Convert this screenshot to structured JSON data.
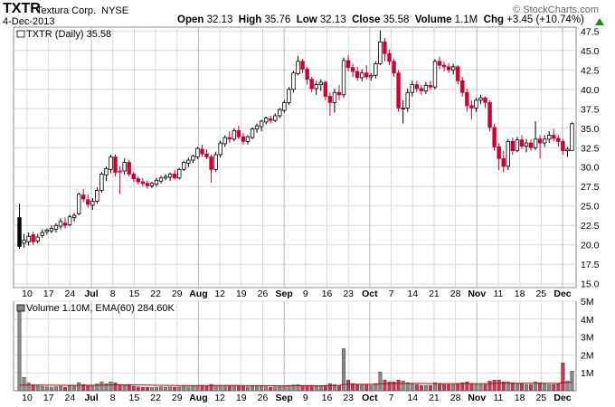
{
  "header": {
    "symbol": "TXTR",
    "company": "Textura Corp.",
    "exchange": "NYSE",
    "date": "4-Dec-2013",
    "open_label": "Open",
    "open": "32.13",
    "high_label": "High",
    "high": "35.76",
    "low_label": "Low",
    "low": "32.13",
    "close_label": "Close",
    "close": "35.58",
    "volume_label": "Volume",
    "volume": "1.1M",
    "chg_label": "Chg",
    "chg": "+3.45 (+10.74%)",
    "brand": "© StockCharts.com"
  },
  "chart_data": {
    "type": "candlestick",
    "title": "TXTR (Daily) 35.58",
    "volume_title": "Volume 1.10M, EMA(60) 284.60K",
    "x_labels": [
      "10",
      "17",
      "24",
      "Jul",
      "8",
      "15",
      "22",
      "29",
      "Aug",
      "12",
      "19",
      "26",
      "Sep",
      "9",
      "16",
      "23",
      "Oct",
      "7",
      "14",
      "21",
      "28",
      "Nov",
      "11",
      "18",
      "25",
      "Dec"
    ],
    "x_bold": [
      "Jul",
      "Aug",
      "Sep",
      "Oct",
      "Nov",
      "Dec"
    ],
    "price_ylim": [
      14.5,
      48
    ],
    "price_ticks": [
      15.0,
      17.5,
      20.0,
      22.5,
      25.0,
      27.5,
      30.0,
      32.5,
      35.0,
      37.5,
      40.0,
      42.5,
      45.0,
      47.5
    ],
    "volume_ylim": [
      0,
      5
    ],
    "volume_ticks": [
      {
        "v": 1,
        "label": "1M"
      },
      {
        "v": 2,
        "label": "2M"
      },
      {
        "v": 3,
        "label": "3M"
      },
      {
        "v": 4,
        "label": "4M"
      },
      {
        "v": 5,
        "label": "5M"
      }
    ],
    "colors": {
      "up": "#ffffff",
      "down": "#cc0033",
      "first": "#000000",
      "wick": "#000000",
      "grid": "#d8d8d8",
      "vol_up": "#888888",
      "vol_down": "#cc3355",
      "ema": "#cc0000"
    },
    "candles": [
      {
        "o": 19.8,
        "h": 25.3,
        "l": 19.5,
        "c": 23.5,
        "v": 4.8
      },
      {
        "o": 20.2,
        "h": 21.4,
        "l": 19.6,
        "c": 20.6,
        "v": 0.75
      },
      {
        "o": 20.4,
        "h": 21.6,
        "l": 19.9,
        "c": 21.1,
        "v": 0.45
      },
      {
        "o": 21.3,
        "h": 21.7,
        "l": 20.0,
        "c": 20.4,
        "v": 0.3
      },
      {
        "o": 20.5,
        "h": 21.4,
        "l": 20.2,
        "c": 21.0,
        "v": 0.28
      },
      {
        "o": 21.2,
        "h": 22.0,
        "l": 20.9,
        "c": 21.6,
        "v": 0.25
      },
      {
        "o": 21.7,
        "h": 22.1,
        "l": 21.3,
        "c": 21.9,
        "v": 0.22
      },
      {
        "o": 21.8,
        "h": 22.5,
        "l": 21.5,
        "c": 22.1,
        "v": 0.2
      },
      {
        "o": 22.0,
        "h": 22.8,
        "l": 21.6,
        "c": 22.5,
        "v": 0.22
      },
      {
        "o": 22.4,
        "h": 23.4,
        "l": 22.0,
        "c": 23.0,
        "v": 0.25
      },
      {
        "o": 22.8,
        "h": 23.5,
        "l": 22.1,
        "c": 22.5,
        "v": 0.2
      },
      {
        "o": 22.6,
        "h": 23.9,
        "l": 22.4,
        "c": 23.6,
        "v": 0.28
      },
      {
        "o": 23.5,
        "h": 24.1,
        "l": 23.0,
        "c": 23.8,
        "v": 0.3
      },
      {
        "o": 24.0,
        "h": 26.7,
        "l": 23.8,
        "c": 26.5,
        "v": 0.45
      },
      {
        "o": 26.4,
        "h": 27.2,
        "l": 25.5,
        "c": 25.9,
        "v": 0.35
      },
      {
        "o": 25.8,
        "h": 26.5,
        "l": 24.8,
        "c": 25.2,
        "v": 0.3
      },
      {
        "o": 25.1,
        "h": 26.0,
        "l": 24.5,
        "c": 25.6,
        "v": 0.3
      },
      {
        "o": 25.6,
        "h": 27.4,
        "l": 25.3,
        "c": 27.0,
        "v": 0.38
      },
      {
        "o": 27.0,
        "h": 29.4,
        "l": 26.7,
        "c": 29.1,
        "v": 0.5
      },
      {
        "o": 29.0,
        "h": 30.1,
        "l": 28.2,
        "c": 29.8,
        "v": 0.4
      },
      {
        "o": 29.7,
        "h": 31.6,
        "l": 29.2,
        "c": 31.3,
        "v": 0.5
      },
      {
        "o": 31.3,
        "h": 31.6,
        "l": 28.8,
        "c": 29.3,
        "v": 0.45
      },
      {
        "o": 29.5,
        "h": 30.1,
        "l": 26.5,
        "c": 29.4,
        "v": 0.35
      },
      {
        "o": 29.5,
        "h": 31.1,
        "l": 29.0,
        "c": 30.6,
        "v": 0.3
      },
      {
        "o": 30.6,
        "h": 30.9,
        "l": 28.8,
        "c": 29.1,
        "v": 0.3
      },
      {
        "o": 29.1,
        "h": 29.4,
        "l": 28.1,
        "c": 28.5,
        "v": 0.25
      },
      {
        "o": 28.5,
        "h": 28.8,
        "l": 27.8,
        "c": 28.1,
        "v": 0.22
      },
      {
        "o": 28.1,
        "h": 28.6,
        "l": 27.5,
        "c": 27.9,
        "v": 0.2
      },
      {
        "o": 27.9,
        "h": 28.3,
        "l": 27.2,
        "c": 27.6,
        "v": 0.2
      },
      {
        "o": 27.6,
        "h": 28.1,
        "l": 27.3,
        "c": 27.9,
        "v": 0.18
      },
      {
        "o": 27.8,
        "h": 28.6,
        "l": 27.5,
        "c": 28.3,
        "v": 0.2
      },
      {
        "o": 28.2,
        "h": 28.9,
        "l": 27.9,
        "c": 28.6,
        "v": 0.22
      },
      {
        "o": 28.6,
        "h": 29.1,
        "l": 28.3,
        "c": 28.8,
        "v": 0.2
      },
      {
        "o": 28.7,
        "h": 29.3,
        "l": 28.2,
        "c": 29.1,
        "v": 0.22
      },
      {
        "o": 29.1,
        "h": 29.6,
        "l": 28.4,
        "c": 28.6,
        "v": 0.2
      },
      {
        "o": 28.6,
        "h": 29.9,
        "l": 28.4,
        "c": 29.7,
        "v": 0.22
      },
      {
        "o": 29.7,
        "h": 30.8,
        "l": 29.5,
        "c": 30.6,
        "v": 0.25
      },
      {
        "o": 30.5,
        "h": 31.2,
        "l": 30.0,
        "c": 30.9,
        "v": 0.22
      },
      {
        "o": 30.9,
        "h": 31.6,
        "l": 30.5,
        "c": 31.4,
        "v": 0.25
      },
      {
        "o": 31.3,
        "h": 32.6,
        "l": 31.0,
        "c": 32.4,
        "v": 0.3
      },
      {
        "o": 32.3,
        "h": 32.9,
        "l": 31.3,
        "c": 31.7,
        "v": 0.3
      },
      {
        "o": 31.7,
        "h": 32.3,
        "l": 31.0,
        "c": 31.3,
        "v": 0.25
      },
      {
        "o": 31.3,
        "h": 31.6,
        "l": 28.0,
        "c": 29.7,
        "v": 0.35
      },
      {
        "o": 29.7,
        "h": 32.0,
        "l": 29.4,
        "c": 31.6,
        "v": 0.3
      },
      {
        "o": 31.6,
        "h": 33.4,
        "l": 31.2,
        "c": 33.1,
        "v": 0.3
      },
      {
        "o": 33.0,
        "h": 34.1,
        "l": 32.6,
        "c": 33.8,
        "v": 0.3
      },
      {
        "o": 33.8,
        "h": 34.6,
        "l": 33.1,
        "c": 33.6,
        "v": 0.28
      },
      {
        "o": 33.6,
        "h": 35.0,
        "l": 33.3,
        "c": 34.7,
        "v": 0.3
      },
      {
        "o": 34.7,
        "h": 35.3,
        "l": 33.6,
        "c": 33.9,
        "v": 0.28
      },
      {
        "o": 33.9,
        "h": 34.4,
        "l": 32.9,
        "c": 33.3,
        "v": 0.25
      },
      {
        "o": 33.3,
        "h": 34.1,
        "l": 32.9,
        "c": 33.9,
        "v": 0.22
      },
      {
        "o": 33.8,
        "h": 35.1,
        "l": 33.6,
        "c": 34.9,
        "v": 0.25
      },
      {
        "o": 34.9,
        "h": 35.6,
        "l": 34.4,
        "c": 35.3,
        "v": 0.25
      },
      {
        "o": 35.2,
        "h": 36.1,
        "l": 34.6,
        "c": 35.9,
        "v": 0.25
      },
      {
        "o": 35.8,
        "h": 36.5,
        "l": 35.5,
        "c": 36.3,
        "v": 0.22
      },
      {
        "o": 36.2,
        "h": 36.6,
        "l": 35.6,
        "c": 36.0,
        "v": 0.2
      },
      {
        "o": 36.0,
        "h": 36.9,
        "l": 35.8,
        "c": 36.6,
        "v": 0.22
      },
      {
        "o": 36.6,
        "h": 37.6,
        "l": 36.3,
        "c": 37.4,
        "v": 0.25
      },
      {
        "o": 37.3,
        "h": 38.6,
        "l": 37.0,
        "c": 38.3,
        "v": 0.28
      },
      {
        "o": 38.3,
        "h": 40.3,
        "l": 38.0,
        "c": 40.0,
        "v": 0.3
      },
      {
        "o": 40.0,
        "h": 42.4,
        "l": 39.6,
        "c": 42.1,
        "v": 0.32
      },
      {
        "o": 42.0,
        "h": 44.3,
        "l": 41.8,
        "c": 43.6,
        "v": 0.35
      },
      {
        "o": 43.6,
        "h": 43.9,
        "l": 42.1,
        "c": 42.6,
        "v": 0.3
      },
      {
        "o": 42.6,
        "h": 42.9,
        "l": 40.6,
        "c": 41.3,
        "v": 0.3
      },
      {
        "o": 41.3,
        "h": 41.6,
        "l": 39.6,
        "c": 40.1,
        "v": 0.3
      },
      {
        "o": 40.1,
        "h": 41.1,
        "l": 39.3,
        "c": 40.6,
        "v": 0.25
      },
      {
        "o": 40.6,
        "h": 41.3,
        "l": 39.8,
        "c": 40.9,
        "v": 0.25
      },
      {
        "o": 40.9,
        "h": 41.1,
        "l": 38.6,
        "c": 39.1,
        "v": 0.3
      },
      {
        "o": 39.1,
        "h": 39.6,
        "l": 36.6,
        "c": 38.3,
        "v": 0.4
      },
      {
        "o": 38.3,
        "h": 40.1,
        "l": 37.0,
        "c": 39.6,
        "v": 0.35
      },
      {
        "o": 39.6,
        "h": 40.6,
        "l": 38.6,
        "c": 39.3,
        "v": 0.3
      },
      {
        "o": 39.3,
        "h": 44.1,
        "l": 38.9,
        "c": 43.7,
        "v": 2.35
      },
      {
        "o": 43.7,
        "h": 44.4,
        "l": 42.3,
        "c": 42.8,
        "v": 0.6
      },
      {
        "o": 42.8,
        "h": 43.3,
        "l": 41.6,
        "c": 42.3,
        "v": 0.4
      },
      {
        "o": 42.3,
        "h": 42.9,
        "l": 41.1,
        "c": 41.5,
        "v": 0.35
      },
      {
        "o": 41.5,
        "h": 42.6,
        "l": 41.0,
        "c": 42.1,
        "v": 0.35
      },
      {
        "o": 42.1,
        "h": 43.1,
        "l": 41.3,
        "c": 41.6,
        "v": 0.35
      },
      {
        "o": 41.6,
        "h": 42.1,
        "l": 41.1,
        "c": 41.8,
        "v": 0.3
      },
      {
        "o": 41.8,
        "h": 43.6,
        "l": 41.4,
        "c": 43.3,
        "v": 0.4
      },
      {
        "o": 43.3,
        "h": 47.6,
        "l": 43.1,
        "c": 46.1,
        "v": 1.05
      },
      {
        "o": 46.1,
        "h": 46.6,
        "l": 43.6,
        "c": 44.6,
        "v": 0.6
      },
      {
        "o": 44.6,
        "h": 45.1,
        "l": 43.1,
        "c": 43.6,
        "v": 0.5
      },
      {
        "o": 43.6,
        "h": 43.9,
        "l": 41.6,
        "c": 42.1,
        "v": 0.5
      },
      {
        "o": 42.1,
        "h": 42.5,
        "l": 37.1,
        "c": 37.6,
        "v": 0.6
      },
      {
        "o": 37.6,
        "h": 38.6,
        "l": 35.6,
        "c": 37.6,
        "v": 0.55
      },
      {
        "o": 37.6,
        "h": 40.1,
        "l": 37.1,
        "c": 39.6,
        "v": 0.45
      },
      {
        "o": 39.6,
        "h": 41.1,
        "l": 39.1,
        "c": 40.6,
        "v": 0.4
      },
      {
        "o": 40.6,
        "h": 41.1,
        "l": 39.6,
        "c": 40.1,
        "v": 0.35
      },
      {
        "o": 40.1,
        "h": 40.6,
        "l": 39.3,
        "c": 39.8,
        "v": 0.3
      },
      {
        "o": 39.8,
        "h": 40.9,
        "l": 39.4,
        "c": 40.5,
        "v": 0.3
      },
      {
        "o": 40.5,
        "h": 41.1,
        "l": 39.9,
        "c": 40.3,
        "v": 0.3
      },
      {
        "o": 40.3,
        "h": 43.9,
        "l": 40.0,
        "c": 43.6,
        "v": 0.45
      },
      {
        "o": 43.6,
        "h": 44.2,
        "l": 42.6,
        "c": 43.1,
        "v": 0.4
      },
      {
        "o": 43.1,
        "h": 43.6,
        "l": 42.3,
        "c": 42.9,
        "v": 0.35
      },
      {
        "o": 42.9,
        "h": 43.4,
        "l": 42.1,
        "c": 42.5,
        "v": 0.35
      },
      {
        "o": 42.5,
        "h": 43.3,
        "l": 41.9,
        "c": 42.9,
        "v": 0.35
      },
      {
        "o": 42.9,
        "h": 43.1,
        "l": 40.6,
        "c": 41.1,
        "v": 0.4
      },
      {
        "o": 41.1,
        "h": 41.6,
        "l": 39.1,
        "c": 39.6,
        "v": 0.45
      },
      {
        "o": 39.6,
        "h": 40.1,
        "l": 37.1,
        "c": 37.9,
        "v": 0.5
      },
      {
        "o": 37.9,
        "h": 38.6,
        "l": 36.1,
        "c": 37.6,
        "v": 0.4
      },
      {
        "o": 37.6,
        "h": 38.9,
        "l": 37.1,
        "c": 38.6,
        "v": 0.35
      },
      {
        "o": 38.6,
        "h": 39.3,
        "l": 38.1,
        "c": 38.9,
        "v": 0.35
      },
      {
        "o": 38.9,
        "h": 39.1,
        "l": 37.6,
        "c": 38.3,
        "v": 0.35
      },
      {
        "o": 38.3,
        "h": 38.6,
        "l": 34.6,
        "c": 35.1,
        "v": 0.55
      },
      {
        "o": 35.1,
        "h": 35.6,
        "l": 32.1,
        "c": 32.6,
        "v": 0.6
      },
      {
        "o": 32.6,
        "h": 33.1,
        "l": 29.6,
        "c": 31.1,
        "v": 0.6
      },
      {
        "o": 31.1,
        "h": 32.1,
        "l": 29.3,
        "c": 30.1,
        "v": 0.5
      },
      {
        "o": 30.1,
        "h": 33.6,
        "l": 29.6,
        "c": 33.3,
        "v": 0.5
      },
      {
        "o": 33.3,
        "h": 33.8,
        "l": 31.6,
        "c": 32.1,
        "v": 0.45
      },
      {
        "o": 32.1,
        "h": 33.9,
        "l": 31.9,
        "c": 33.5,
        "v": 0.4
      },
      {
        "o": 33.5,
        "h": 34.1,
        "l": 32.3,
        "c": 32.7,
        "v": 0.4
      },
      {
        "o": 32.7,
        "h": 33.6,
        "l": 31.9,
        "c": 33.1,
        "v": 0.35
      },
      {
        "o": 33.1,
        "h": 33.6,
        "l": 32.1,
        "c": 32.5,
        "v": 0.35
      },
      {
        "o": 32.5,
        "h": 35.9,
        "l": 32.2,
        "c": 33.6,
        "v": 0.5
      },
      {
        "o": 33.6,
        "h": 34.1,
        "l": 31.1,
        "c": 33.1,
        "v": 0.45
      },
      {
        "o": 33.1,
        "h": 34.1,
        "l": 32.6,
        "c": 33.6,
        "v": 0.4
      },
      {
        "o": 33.6,
        "h": 34.6,
        "l": 33.1,
        "c": 34.1,
        "v": 0.35
      },
      {
        "o": 34.1,
        "h": 34.9,
        "l": 33.3,
        "c": 33.7,
        "v": 0.35
      },
      {
        "o": 33.7,
        "h": 34.1,
        "l": 32.6,
        "c": 33.3,
        "v": 0.4
      },
      {
        "o": 33.3,
        "h": 33.6,
        "l": 31.6,
        "c": 32.1,
        "v": 1.55
      },
      {
        "o": 32.1,
        "h": 32.6,
        "l": 31.3,
        "c": 32.3,
        "v": 0.55
      },
      {
        "o": 32.13,
        "h": 35.76,
        "l": 32.13,
        "c": 35.58,
        "v": 1.1
      }
    ]
  }
}
